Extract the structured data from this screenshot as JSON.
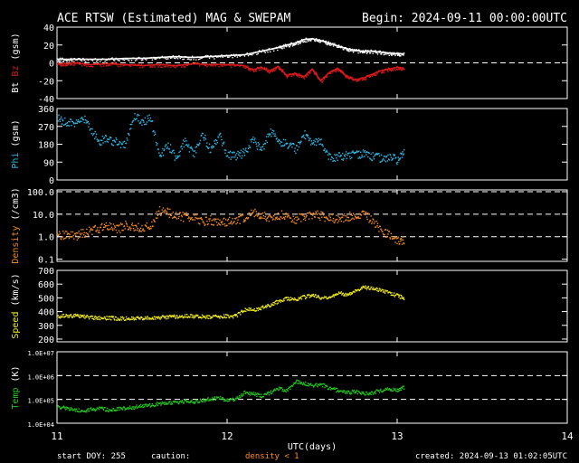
{
  "header": {
    "title": "ACE RTSW (Estimated) MAG & SWEPAM",
    "begin": "Begin: 2024-09-11 00:00:00UTC"
  },
  "footer": {
    "start_doy": "start DOY: 255",
    "caution": "caution:",
    "density_note": "density < 1",
    "created": "created: 2024-09-13 01:02:05UTC"
  },
  "colors": {
    "bt": "#ffffff",
    "bz": "#d81818",
    "phi": "#2fb8e6",
    "density": "#f08a20",
    "speed": "#f2ee1a",
    "temp": "#22c81e",
    "caution": "#ff8c1a"
  },
  "chart_data": [
    {
      "type": "line",
      "ylabel_parts": [
        {
          "text": "Bt",
          "color": "#ffffff"
        },
        {
          "text": " Bz",
          "color": "#d81818"
        },
        {
          "text": " (gsm)",
          "color": "#ffffff"
        }
      ],
      "ylim": [
        -40,
        40
      ],
      "yticks": [
        -40,
        -20,
        0,
        20,
        40
      ],
      "ref_lines": [
        0
      ],
      "series": [
        {
          "key": "bt",
          "color": "#ffffff",
          "x": [
            11.0,
            11.05,
            11.1,
            11.2,
            11.3,
            11.4,
            11.5,
            11.6,
            11.7,
            11.8,
            11.9,
            12.0,
            12.1,
            12.2,
            12.3,
            12.35,
            12.4,
            12.45,
            12.5,
            12.55,
            12.6,
            12.65,
            12.7,
            12.75,
            12.8,
            12.85,
            12.9,
            12.95,
            13.0,
            13.04
          ],
          "y": [
            4,
            4,
            4,
            4,
            4,
            5,
            5,
            6,
            7,
            6,
            7,
            8,
            9,
            13,
            17,
            20,
            22,
            26,
            27,
            25,
            22,
            19,
            16,
            14,
            13,
            13,
            12,
            11,
            10,
            10
          ]
        },
        {
          "key": "bz",
          "color": "#d81818",
          "x": [
            11.0,
            11.05,
            11.1,
            11.2,
            11.3,
            11.4,
            11.5,
            11.6,
            11.7,
            11.8,
            11.9,
            12.0,
            12.1,
            12.15,
            12.2,
            12.25,
            12.3,
            12.35,
            12.4,
            12.45,
            12.5,
            12.55,
            12.6,
            12.65,
            12.7,
            12.75,
            12.8,
            12.85,
            12.9,
            12.95,
            13.0,
            13.04
          ],
          "y": [
            -1,
            -1,
            0,
            -2,
            -1,
            -2,
            -3,
            -2,
            -3,
            -1,
            -2,
            -2,
            -3,
            -8,
            -5,
            -9,
            -4,
            -14,
            -12,
            -16,
            -7,
            -20,
            -11,
            -6,
            -15,
            -19,
            -17,
            -13,
            -9,
            -7,
            -5,
            -6
          ]
        }
      ]
    },
    {
      "type": "scatter",
      "ylabel_parts": [
        {
          "text": "Phi",
          "color": "#2fb8e6"
        },
        {
          "text": " (gsm)",
          "color": "#ffffff"
        }
      ],
      "ylim": [
        0,
        360
      ],
      "yticks": [
        0,
        90,
        180,
        270,
        360
      ],
      "yticklabels": [
        "0",
        "90",
        "180",
        "270",
        "360"
      ],
      "ref_lines": [],
      "series": [
        {
          "key": "phi",
          "color": "#2fb8e6",
          "x": [
            11.0,
            11.05,
            11.1,
            11.15,
            11.2,
            11.25,
            11.3,
            11.35,
            11.4,
            11.45,
            11.5,
            11.55,
            11.6,
            11.65,
            11.7,
            11.75,
            11.8,
            11.85,
            11.9,
            11.95,
            12.0,
            12.05,
            12.1,
            12.15,
            12.2,
            12.25,
            12.3,
            12.35,
            12.4,
            12.45,
            12.5,
            12.55,
            12.6,
            12.65,
            12.7,
            12.75,
            12.8,
            12.85,
            12.9,
            12.95,
            13.0,
            13.04
          ],
          "y": [
            310,
            300,
            280,
            320,
            250,
            200,
            210,
            190,
            180,
            330,
            300,
            310,
            120,
            180,
            110,
            200,
            130,
            240,
            150,
            230,
            130,
            120,
            140,
            210,
            150,
            250,
            200,
            180,
            160,
            230,
            190,
            200,
            110,
            120,
            130,
            125,
            140,
            120,
            115,
            120,
            100,
            160
          ]
        }
      ]
    },
    {
      "type": "scatter",
      "ylabel_parts": [
        {
          "text": "Density",
          "color": "#f08a20"
        },
        {
          "text": " (/cm3)",
          "color": "#ffffff"
        }
      ],
      "log": true,
      "ylim": [
        0.08,
        120
      ],
      "yticks": [
        0.1,
        1.0,
        10.0,
        100.0
      ],
      "yticklabels": [
        "0.1",
        "1.0",
        "10.0",
        "100.0"
      ],
      "ref_lines": [
        1.0,
        10.0,
        100.0
      ],
      "series": [
        {
          "key": "density",
          "color": "#f08a20",
          "x": [
            11.0,
            11.05,
            11.1,
            11.15,
            11.2,
            11.25,
            11.3,
            11.35,
            11.4,
            11.45,
            11.5,
            11.55,
            11.6,
            11.65,
            11.7,
            11.75,
            11.8,
            11.85,
            11.9,
            11.95,
            12.0,
            12.05,
            12.1,
            12.15,
            12.2,
            12.25,
            12.3,
            12.35,
            12.4,
            12.45,
            12.5,
            12.55,
            12.6,
            12.65,
            12.7,
            12.75,
            12.8,
            12.85,
            12.9,
            12.95,
            13.0,
            13.04
          ],
          "y": [
            1.2,
            1.4,
            1.1,
            1.5,
            2.0,
            2.5,
            3.0,
            2.2,
            3.5,
            3.0,
            2.5,
            3.2,
            15,
            12,
            9,
            8,
            7,
            5,
            6,
            4,
            5,
            6,
            7,
            12,
            9,
            8,
            10,
            9,
            6,
            8,
            10,
            9,
            7,
            6,
            8,
            9,
            10,
            6,
            2,
            1.2,
            0.8,
            0.6
          ]
        }
      ]
    },
    {
      "type": "scatter",
      "ylabel_parts": [
        {
          "text": "Speed",
          "color": "#f2ee1a"
        },
        {
          "text": " (km/s)",
          "color": "#ffffff"
        }
      ],
      "ylim": [
        180,
        700
      ],
      "yticks": [
        200,
        300,
        400,
        500,
        600,
        700
      ],
      "yticklabels": [
        "200",
        "300",
        "400",
        "500",
        "600",
        "700"
      ],
      "ref_lines": [],
      "series": [
        {
          "key": "speed",
          "color": "#f2ee1a",
          "x": [
            11.0,
            11.05,
            11.1,
            11.15,
            11.2,
            11.25,
            11.3,
            11.35,
            11.4,
            11.45,
            11.5,
            11.55,
            11.6,
            11.65,
            11.7,
            11.75,
            11.8,
            11.85,
            11.9,
            11.95,
            12.0,
            12.05,
            12.1,
            12.15,
            12.2,
            12.25,
            12.3,
            12.35,
            12.4,
            12.45,
            12.5,
            12.55,
            12.6,
            12.65,
            12.7,
            12.75,
            12.8,
            12.85,
            12.9,
            12.95,
            13.0,
            13.04
          ],
          "y": [
            370,
            372,
            375,
            368,
            360,
            355,
            358,
            355,
            352,
            356,
            358,
            360,
            362,
            365,
            368,
            372,
            370,
            368,
            365,
            368,
            370,
            372,
            420,
            415,
            430,
            450,
            480,
            500,
            490,
            510,
            520,
            505,
            510,
            540,
            530,
            550,
            580,
            570,
            560,
            540,
            520,
            500
          ]
        }
      ]
    },
    {
      "type": "scatter",
      "ylabel_parts": [
        {
          "text": "Temp",
          "color": "#22c81e"
        },
        {
          "text": " (K)",
          "color": "#ffffff"
        }
      ],
      "log": true,
      "ylim": [
        10000,
        10000000
      ],
      "yticks": [
        10000,
        100000,
        1000000,
        10000000
      ],
      "yticklabels": [
        "1.0E+04",
        "1.0E+05",
        "1.0E+06",
        "1.0E+07"
      ],
      "ref_lines": [
        100000,
        1000000
      ],
      "series": [
        {
          "key": "temp",
          "color": "#22c81e",
          "x": [
            11.0,
            11.05,
            11.1,
            11.15,
            11.2,
            11.25,
            11.3,
            11.35,
            11.4,
            11.45,
            11.5,
            11.55,
            11.6,
            11.65,
            11.7,
            11.75,
            11.8,
            11.85,
            11.9,
            11.95,
            12.0,
            12.05,
            12.1,
            12.15,
            12.2,
            12.25,
            12.3,
            12.35,
            12.4,
            12.45,
            12.5,
            12.55,
            12.6,
            12.65,
            12.7,
            12.75,
            12.8,
            12.85,
            12.9,
            12.95,
            13.0,
            13.04
          ],
          "y": [
            50000,
            45000,
            40000,
            35000,
            40000,
            45000,
            38000,
            42000,
            45000,
            50000,
            55000,
            60000,
            70000,
            75000,
            80000,
            90000,
            85000,
            95000,
            110000,
            120000,
            100000,
            110000,
            200000,
            180000,
            150000,
            200000,
            300000,
            250000,
            600000,
            500000,
            400000,
            450000,
            300000,
            250000,
            200000,
            220000,
            180000,
            200000,
            250000,
            300000,
            250000,
            350000
          ]
        }
      ]
    }
  ],
  "x_axis": {
    "xlim": [
      11,
      14
    ],
    "ticks": [
      11,
      12,
      13,
      14
    ],
    "ticklabels": [
      "11",
      "12",
      "13",
      "14"
    ],
    "label": "UTC(days)"
  }
}
